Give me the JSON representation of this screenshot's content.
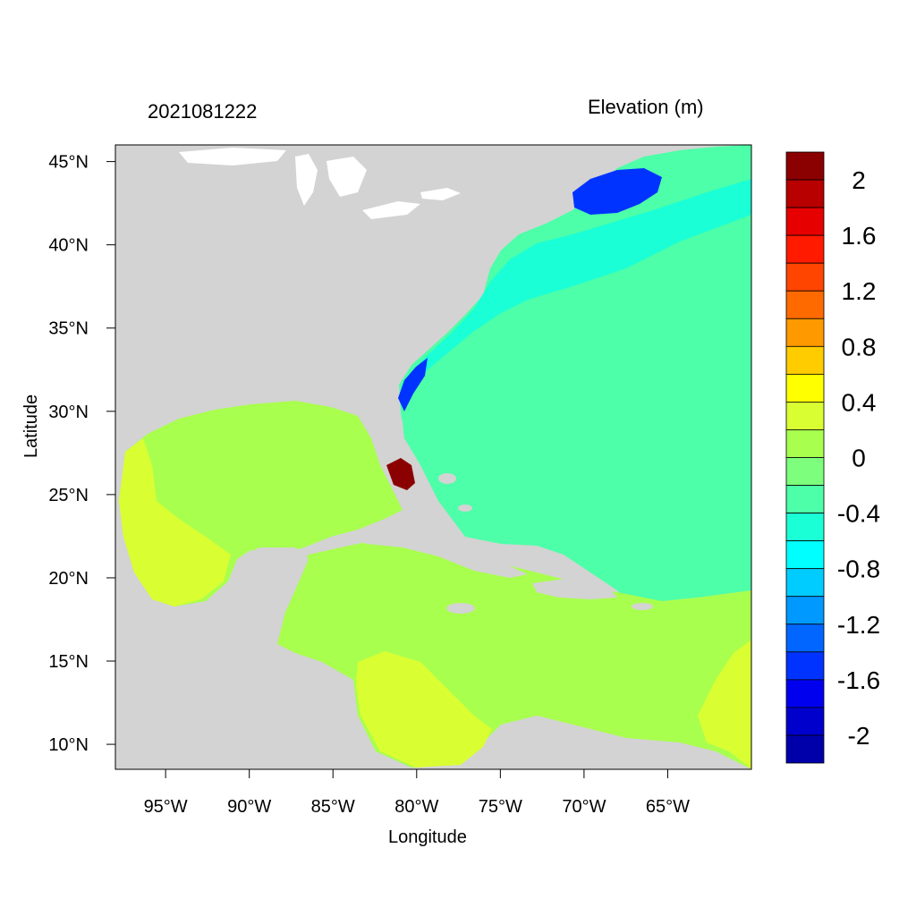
{
  "header": {
    "date_label": "2021081222",
    "variable_label": "Elevation (m)"
  },
  "axes": {
    "xlabel": "Longitude",
    "ylabel": "Latitude",
    "xticks": [
      {
        "value": -95,
        "label": "95°W"
      },
      {
        "value": -90,
        "label": "90°W"
      },
      {
        "value": -85,
        "label": "85°W"
      },
      {
        "value": -80,
        "label": "80°W"
      },
      {
        "value": -75,
        "label": "75°W"
      },
      {
        "value": -70,
        "label": "70°W"
      },
      {
        "value": -65,
        "label": "65°W"
      }
    ],
    "yticks": [
      {
        "value": 45,
        "label": "45°N"
      },
      {
        "value": 40,
        "label": "40°N"
      },
      {
        "value": 35,
        "label": "35°N"
      },
      {
        "value": 30,
        "label": "30°N"
      },
      {
        "value": 25,
        "label": "25°N"
      },
      {
        "value": 20,
        "label": "20°N"
      },
      {
        "value": 15,
        "label": "15°N"
      },
      {
        "value": 10,
        "label": "10°N"
      }
    ],
    "xlim": [
      -98,
      -60
    ],
    "ylim": [
      8.5,
      46
    ]
  },
  "colorbar": {
    "colors": [
      "#8b0000",
      "#b80000",
      "#e60000",
      "#ff1a00",
      "#ff4500",
      "#ff6a00",
      "#ff9900",
      "#ffcc00",
      "#ffff00",
      "#d9ff33",
      "#a8ff4d",
      "#7dff7d",
      "#4dffa8",
      "#1affd6",
      "#00ffff",
      "#00ccff",
      "#0099ff",
      "#0066ff",
      "#0033ff",
      "#0000ee",
      "#0000cc",
      "#0000aa"
    ],
    "labels": [
      "2",
      "1.6",
      "1.2",
      "0.8",
      "0.4",
      "0",
      "-0.4",
      "-0.8",
      "-1.2",
      "-1.6",
      "-2"
    ]
  },
  "map_colors": {
    "land": "#d3d3d3",
    "lakes": "#ffffff",
    "gulf": "#a8ff4d",
    "caribbean": "#a8ff4d",
    "atlantic": "#4dffa8",
    "gulf_stream": "#1affd6",
    "gulf_of_maine": "#0033ff",
    "western_gulf": "#d9ff33",
    "florida_surge": "#8b0000"
  }
}
